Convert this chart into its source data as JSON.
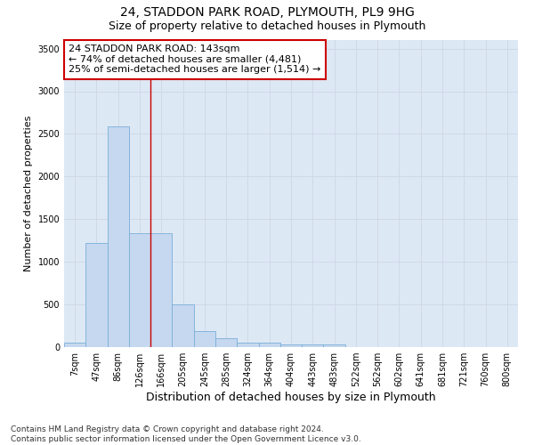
{
  "title1": "24, STADDON PARK ROAD, PLYMOUTH, PL9 9HG",
  "title2": "Size of property relative to detached houses in Plymouth",
  "xlabel": "Distribution of detached houses by size in Plymouth",
  "ylabel": "Number of detached properties",
  "bar_labels": [
    "7sqm",
    "47sqm",
    "86sqm",
    "126sqm",
    "166sqm",
    "205sqm",
    "245sqm",
    "285sqm",
    "324sqm",
    "364sqm",
    "404sqm",
    "443sqm",
    "483sqm",
    "522sqm",
    "562sqm",
    "602sqm",
    "641sqm",
    "681sqm",
    "721sqm",
    "760sqm",
    "800sqm"
  ],
  "bar_values": [
    50,
    1220,
    2590,
    1340,
    1340,
    500,
    190,
    105,
    50,
    50,
    35,
    35,
    35,
    0,
    0,
    0,
    0,
    0,
    0,
    0,
    0
  ],
  "bar_color": "#c5d8f0",
  "bar_edge_color": "#7aaed6",
  "annotation_line1": "24 STADDON PARK ROAD: 143sqm",
  "annotation_line2": "← 74% of detached houses are smaller (4,481)",
  "annotation_line3": "25% of semi-detached houses are larger (1,514) →",
  "annotation_box_facecolor": "#ffffff",
  "annotation_box_edgecolor": "#cc0000",
  "vline_x_index": 3.5,
  "vline_color": "#cc0000",
  "ylim": [
    0,
    3600
  ],
  "yticks": [
    0,
    500,
    1000,
    1500,
    2000,
    2500,
    3000,
    3500
  ],
  "grid_color": "#d0d8e8",
  "bg_color": "#dde8f5",
  "footer_text": "Contains HM Land Registry data © Crown copyright and database right 2024.\nContains public sector information licensed under the Open Government Licence v3.0.",
  "title1_fontsize": 10,
  "title2_fontsize": 9,
  "xlabel_fontsize": 9,
  "ylabel_fontsize": 8,
  "tick_fontsize": 7,
  "annotation_fontsize": 8,
  "footer_fontsize": 6.5
}
